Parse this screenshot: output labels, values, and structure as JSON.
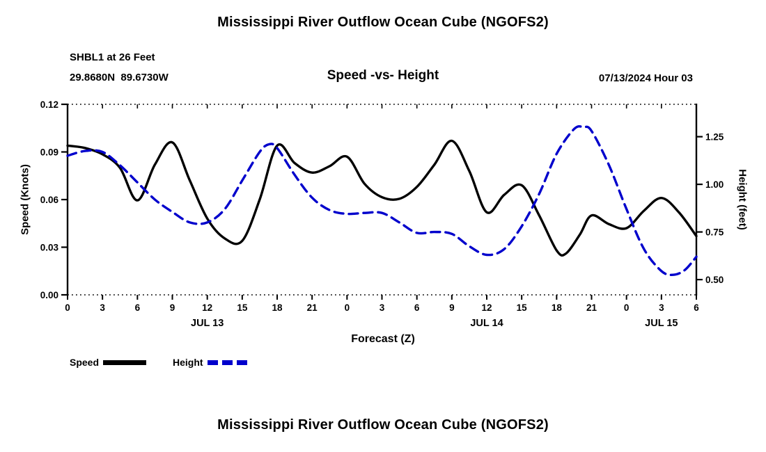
{
  "titles": {
    "top": "Mississippi River Outflow Ocean Cube (NGOFS2)",
    "bottom": "Mississippi River Outflow Ocean Cube (NGOFS2)",
    "station": "SHBL1 at 26 Feet",
    "coords": "29.8680N  89.6730W",
    "center": "Speed -vs- Height",
    "datetime": "07/13/2024 Hour 03"
  },
  "legend": [
    {
      "label": "Speed",
      "color": "#000000",
      "style": "solid"
    },
    {
      "label": "Height",
      "color": "#0000cc",
      "style": "dashed"
    }
  ],
  "chart_data": {
    "type": "line",
    "title": "Speed -vs- Height",
    "xlabel": "Forecast (Z)",
    "ylabel_left": "Speed (Knots)",
    "ylabel_right": "Height (feet)",
    "grid": false,
    "legend_position": "bottom-left",
    "x_hours_range": [
      0,
      54
    ],
    "x_tick_interval": 3,
    "x_tick_labels": [
      "0",
      "3",
      "6",
      "9",
      "12",
      "15",
      "18",
      "21",
      "0",
      "3",
      "6",
      "9",
      "12",
      "15",
      "18",
      "21",
      "0",
      "3",
      "6"
    ],
    "day_labels": [
      {
        "label": "JUL 13",
        "hour": 12
      },
      {
        "label": "JUL 14",
        "hour": 36
      },
      {
        "label": "JUL 15",
        "hour": 51
      }
    ],
    "y_left": {
      "min": 0.0,
      "max": 0.12,
      "ticks": [
        "0.00",
        "0.03",
        "0.06",
        "0.09",
        "0.12"
      ]
    },
    "y_right": {
      "min": 0.42,
      "max": 1.42,
      "ticks": [
        "0.50",
        "0.75",
        "1.00",
        "1.25"
      ]
    },
    "series": [
      {
        "name": "Speed",
        "axis": "left",
        "units": "knots",
        "color": "#000000",
        "style": "solid",
        "points": [
          [
            0,
            0.094
          ],
          [
            1.5,
            0.0925
          ],
          [
            3,
            0.0885
          ],
          [
            4.5,
            0.08
          ],
          [
            6,
            0.0595
          ],
          [
            7.5,
            0.082
          ],
          [
            9,
            0.096
          ],
          [
            10.5,
            0.072
          ],
          [
            12,
            0.048
          ],
          [
            13.5,
            0.0355
          ],
          [
            15,
            0.034
          ],
          [
            16.5,
            0.06
          ],
          [
            18,
            0.094
          ],
          [
            19.5,
            0.083
          ],
          [
            21,
            0.077
          ],
          [
            22.5,
            0.081
          ],
          [
            24,
            0.087
          ],
          [
            25.5,
            0.07
          ],
          [
            27,
            0.0615
          ],
          [
            28.5,
            0.0605
          ],
          [
            30,
            0.068
          ],
          [
            31.5,
            0.082
          ],
          [
            33,
            0.097
          ],
          [
            34.5,
            0.078
          ],
          [
            36,
            0.052
          ],
          [
            37.5,
            0.063
          ],
          [
            39,
            0.069
          ],
          [
            40.5,
            0.05
          ],
          [
            42,
            0.028
          ],
          [
            42.8,
            0.026
          ],
          [
            44,
            0.038
          ],
          [
            45,
            0.05
          ],
          [
            46.5,
            0.0445
          ],
          [
            48,
            0.042
          ],
          [
            49.5,
            0.053
          ],
          [
            51,
            0.061
          ],
          [
            52.5,
            0.052
          ],
          [
            54,
            0.037
          ]
        ]
      },
      {
        "name": "Height",
        "axis": "right",
        "units": "feet",
        "color": "#0000cc",
        "style": "dashed",
        "points": [
          [
            0,
            1.15
          ],
          [
            1.5,
            1.175
          ],
          [
            3,
            1.17
          ],
          [
            4.5,
            1.1
          ],
          [
            6,
            1.01
          ],
          [
            7.5,
            0.92
          ],
          [
            9,
            0.855
          ],
          [
            10.5,
            0.8
          ],
          [
            12,
            0.8
          ],
          [
            13.5,
            0.87
          ],
          [
            15,
            1.02
          ],
          [
            16.5,
            1.17
          ],
          [
            17.3,
            1.21
          ],
          [
            18,
            1.19
          ],
          [
            19.5,
            1.05
          ],
          [
            21,
            0.93
          ],
          [
            22.5,
            0.865
          ],
          [
            24,
            0.845
          ],
          [
            25.5,
            0.85
          ],
          [
            27,
            0.85
          ],
          [
            28.5,
            0.8
          ],
          [
            30,
            0.745
          ],
          [
            31.5,
            0.75
          ],
          [
            33,
            0.74
          ],
          [
            34.5,
            0.675
          ],
          [
            36,
            0.63
          ],
          [
            37.5,
            0.66
          ],
          [
            39,
            0.78
          ],
          [
            40.5,
            0.95
          ],
          [
            42,
            1.16
          ],
          [
            43.5,
            1.29
          ],
          [
            44.3,
            1.3
          ],
          [
            45,
            1.28
          ],
          [
            46.5,
            1.1
          ],
          [
            48,
            0.87
          ],
          [
            49.5,
            0.66
          ],
          [
            51,
            0.545
          ],
          [
            52,
            0.525
          ],
          [
            53,
            0.55
          ],
          [
            54,
            0.62
          ]
        ]
      }
    ]
  }
}
